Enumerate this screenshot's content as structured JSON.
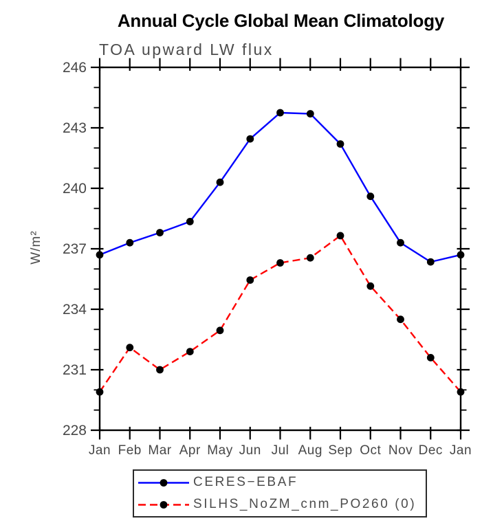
{
  "chart_data": {
    "type": "line",
    "title": "Annual Cycle Global Mean Climatology",
    "subtitle": "TOA upward LW flux",
    "ylabel": "W/m²",
    "xlabel": "",
    "categories": [
      "Jan",
      "Feb",
      "Mar",
      "Apr",
      "May",
      "Jun",
      "Jul",
      "Aug",
      "Sep",
      "Oct",
      "Nov",
      "Dec",
      "Jan"
    ],
    "ylim": [
      228,
      246
    ],
    "ytick_major": [
      228,
      231,
      234,
      237,
      240,
      243,
      246
    ],
    "ytick_minor_step": 1,
    "grid": false,
    "legend_position": "bottom-center",
    "axis_color": "#000000",
    "tick_label_color": "#474747",
    "series": [
      {
        "name": "CERES−EBAF",
        "color": "#0000ff",
        "line_style": "solid",
        "marker": "filled-circle",
        "marker_color": "#000000",
        "values": [
          236.7,
          237.3,
          237.8,
          238.35,
          240.3,
          242.45,
          243.75,
          243.7,
          242.2,
          239.6,
          237.3,
          236.35,
          236.7
        ]
      },
      {
        "name": "SILHS_NoZM_cnm_PO260 (0)",
        "color": "#ff0000",
        "line_style": "dashed",
        "marker": "filled-circle",
        "marker_color": "#000000",
        "values": [
          229.9,
          232.1,
          231.0,
          231.9,
          232.95,
          235.45,
          236.3,
          236.55,
          237.65,
          235.15,
          233.5,
          231.6,
          229.9
        ]
      }
    ]
  }
}
